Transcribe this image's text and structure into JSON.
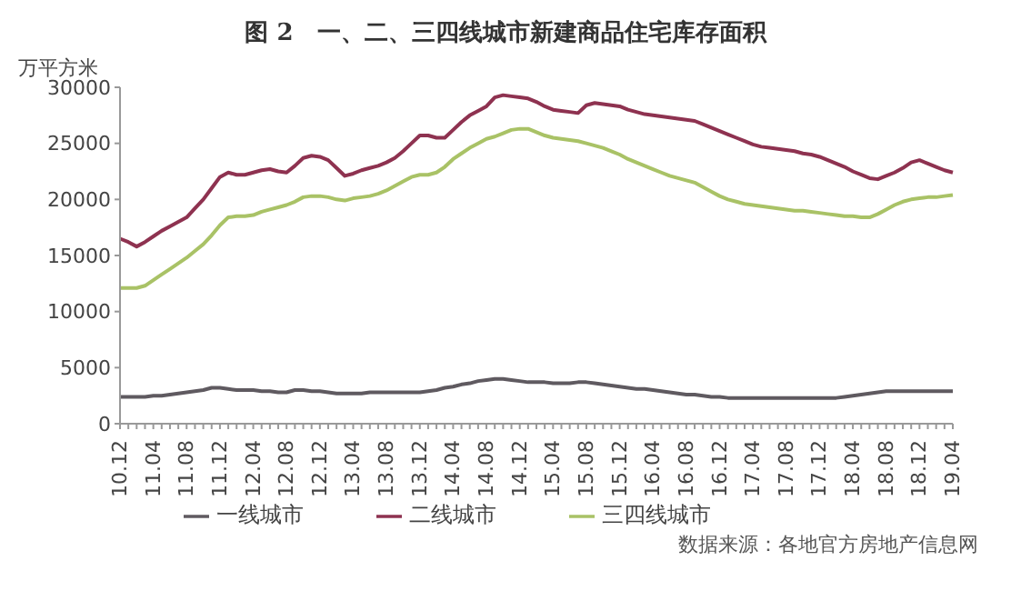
{
  "chart_data": {
    "type": "line",
    "title": "图 2　一、二、三四线城市新建商品住宅库存面积",
    "ylabel": "万平方米",
    "categories": [
      "10.12",
      null,
      null,
      null,
      "11.04",
      null,
      null,
      null,
      "11.08",
      null,
      null,
      null,
      "11.12",
      null,
      null,
      null,
      "12.04",
      null,
      null,
      null,
      "12.08",
      null,
      null,
      null,
      "12.12",
      null,
      null,
      null,
      "13.04",
      null,
      null,
      null,
      "13.08",
      null,
      null,
      null,
      "13.12",
      null,
      null,
      null,
      "14.04",
      null,
      null,
      null,
      "14.08",
      null,
      null,
      null,
      "14.12",
      null,
      null,
      null,
      "15.04",
      null,
      null,
      null,
      "15.08",
      null,
      null,
      null,
      "15.12",
      null,
      null,
      null,
      "16.04",
      null,
      null,
      null,
      "16.08",
      null,
      null,
      null,
      "16.12",
      null,
      null,
      null,
      "17.04",
      null,
      null,
      null,
      "17.08",
      null,
      null,
      null,
      "17.12",
      null,
      null,
      null,
      "18.04",
      null,
      null,
      null,
      "18.08",
      null,
      null,
      null,
      "18.12",
      null,
      null,
      null,
      "19.04"
    ],
    "series": [
      {
        "name": "一线城市",
        "color": "#5f5a60",
        "values": [
          2400,
          2400,
          2400,
          2400,
          2500,
          2500,
          2600,
          2700,
          2800,
          2900,
          3000,
          3200,
          3200,
          3100,
          3000,
          3000,
          3000,
          2900,
          2900,
          2800,
          2800,
          3000,
          3000,
          2900,
          2900,
          2800,
          2700,
          2700,
          2700,
          2700,
          2800,
          2800,
          2800,
          2800,
          2800,
          2800,
          2800,
          2900,
          3000,
          3200,
          3300,
          3500,
          3600,
          3800,
          3900,
          4000,
          4000,
          3900,
          3800,
          3700,
          3700,
          3700,
          3600,
          3600,
          3600,
          3700,
          3700,
          3600,
          3500,
          3400,
          3300,
          3200,
          3100,
          3100,
          3000,
          2900,
          2800,
          2700,
          2600,
          2600,
          2500,
          2400,
          2400,
          2300,
          2300,
          2300,
          2300,
          2300,
          2300,
          2300,
          2300,
          2300,
          2300,
          2300,
          2300,
          2300,
          2300,
          2400,
          2500,
          2600,
          2700,
          2800,
          2900,
          2900,
          2900,
          2900,
          2900,
          2900,
          2900,
          2900,
          2900
        ]
      },
      {
        "name": "二线城市",
        "color": "#8e3250",
        "values": [
          16500,
          16200,
          15800,
          16200,
          16700,
          17200,
          17600,
          18000,
          18400,
          19200,
          20000,
          21000,
          22000,
          22400,
          22200,
          22200,
          22400,
          22600,
          22700,
          22500,
          22400,
          23000,
          23700,
          23900,
          23800,
          23500,
          22800,
          22100,
          22300,
          22600,
          22800,
          23000,
          23300,
          23700,
          24300,
          25000,
          25700,
          25700,
          25500,
          25500,
          26200,
          26900,
          27500,
          27900,
          28300,
          29100,
          29300,
          29200,
          29100,
          29000,
          28700,
          28300,
          28000,
          27900,
          27800,
          27700,
          28400,
          28600,
          28500,
          28400,
          28300,
          28000,
          27800,
          27600,
          27500,
          27400,
          27300,
          27200,
          27100,
          27000,
          26700,
          26400,
          26100,
          25800,
          25500,
          25200,
          24900,
          24700,
          24600,
          24500,
          24400,
          24300,
          24100,
          24000,
          23800,
          23500,
          23200,
          22900,
          22500,
          22200,
          21900,
          21800,
          22100,
          22400,
          22800,
          23300,
          23500,
          23200,
          22900,
          22600,
          22400
        ]
      },
      {
        "name": "三四线城市",
        "color": "#a9c266",
        "values": [
          12100,
          12100,
          12100,
          12300,
          12800,
          13300,
          13800,
          14300,
          14800,
          15400,
          16000,
          16800,
          17700,
          18400,
          18500,
          18500,
          18600,
          18900,
          19100,
          19300,
          19500,
          19800,
          20200,
          20300,
          20300,
          20200,
          20000,
          19900,
          20100,
          20200,
          20300,
          20500,
          20800,
          21200,
          21600,
          22000,
          22200,
          22200,
          22400,
          22900,
          23600,
          24100,
          24600,
          25000,
          25400,
          25600,
          25900,
          26200,
          26300,
          26300,
          26000,
          25700,
          25500,
          25400,
          25300,
          25200,
          25000,
          24800,
          24600,
          24300,
          24000,
          23600,
          23300,
          23000,
          22700,
          22400,
          22100,
          21900,
          21700,
          21500,
          21100,
          20700,
          20300,
          20000,
          19800,
          19600,
          19500,
          19400,
          19300,
          19200,
          19100,
          19000,
          19000,
          18900,
          18800,
          18700,
          18600,
          18500,
          18500,
          18400,
          18400,
          18700,
          19100,
          19500,
          19800,
          20000,
          20100,
          20200,
          20200,
          20300,
          20400
        ]
      }
    ],
    "ylim": [
      0,
      30000
    ],
    "yticks": [
      0,
      5000,
      10000,
      15000,
      20000,
      25000,
      30000
    ],
    "grid": false,
    "legend": "bottom",
    "marker": "none",
    "line_style": "solid",
    "annotations": [
      "数据来源：各地官方房地产信息网"
    ]
  }
}
